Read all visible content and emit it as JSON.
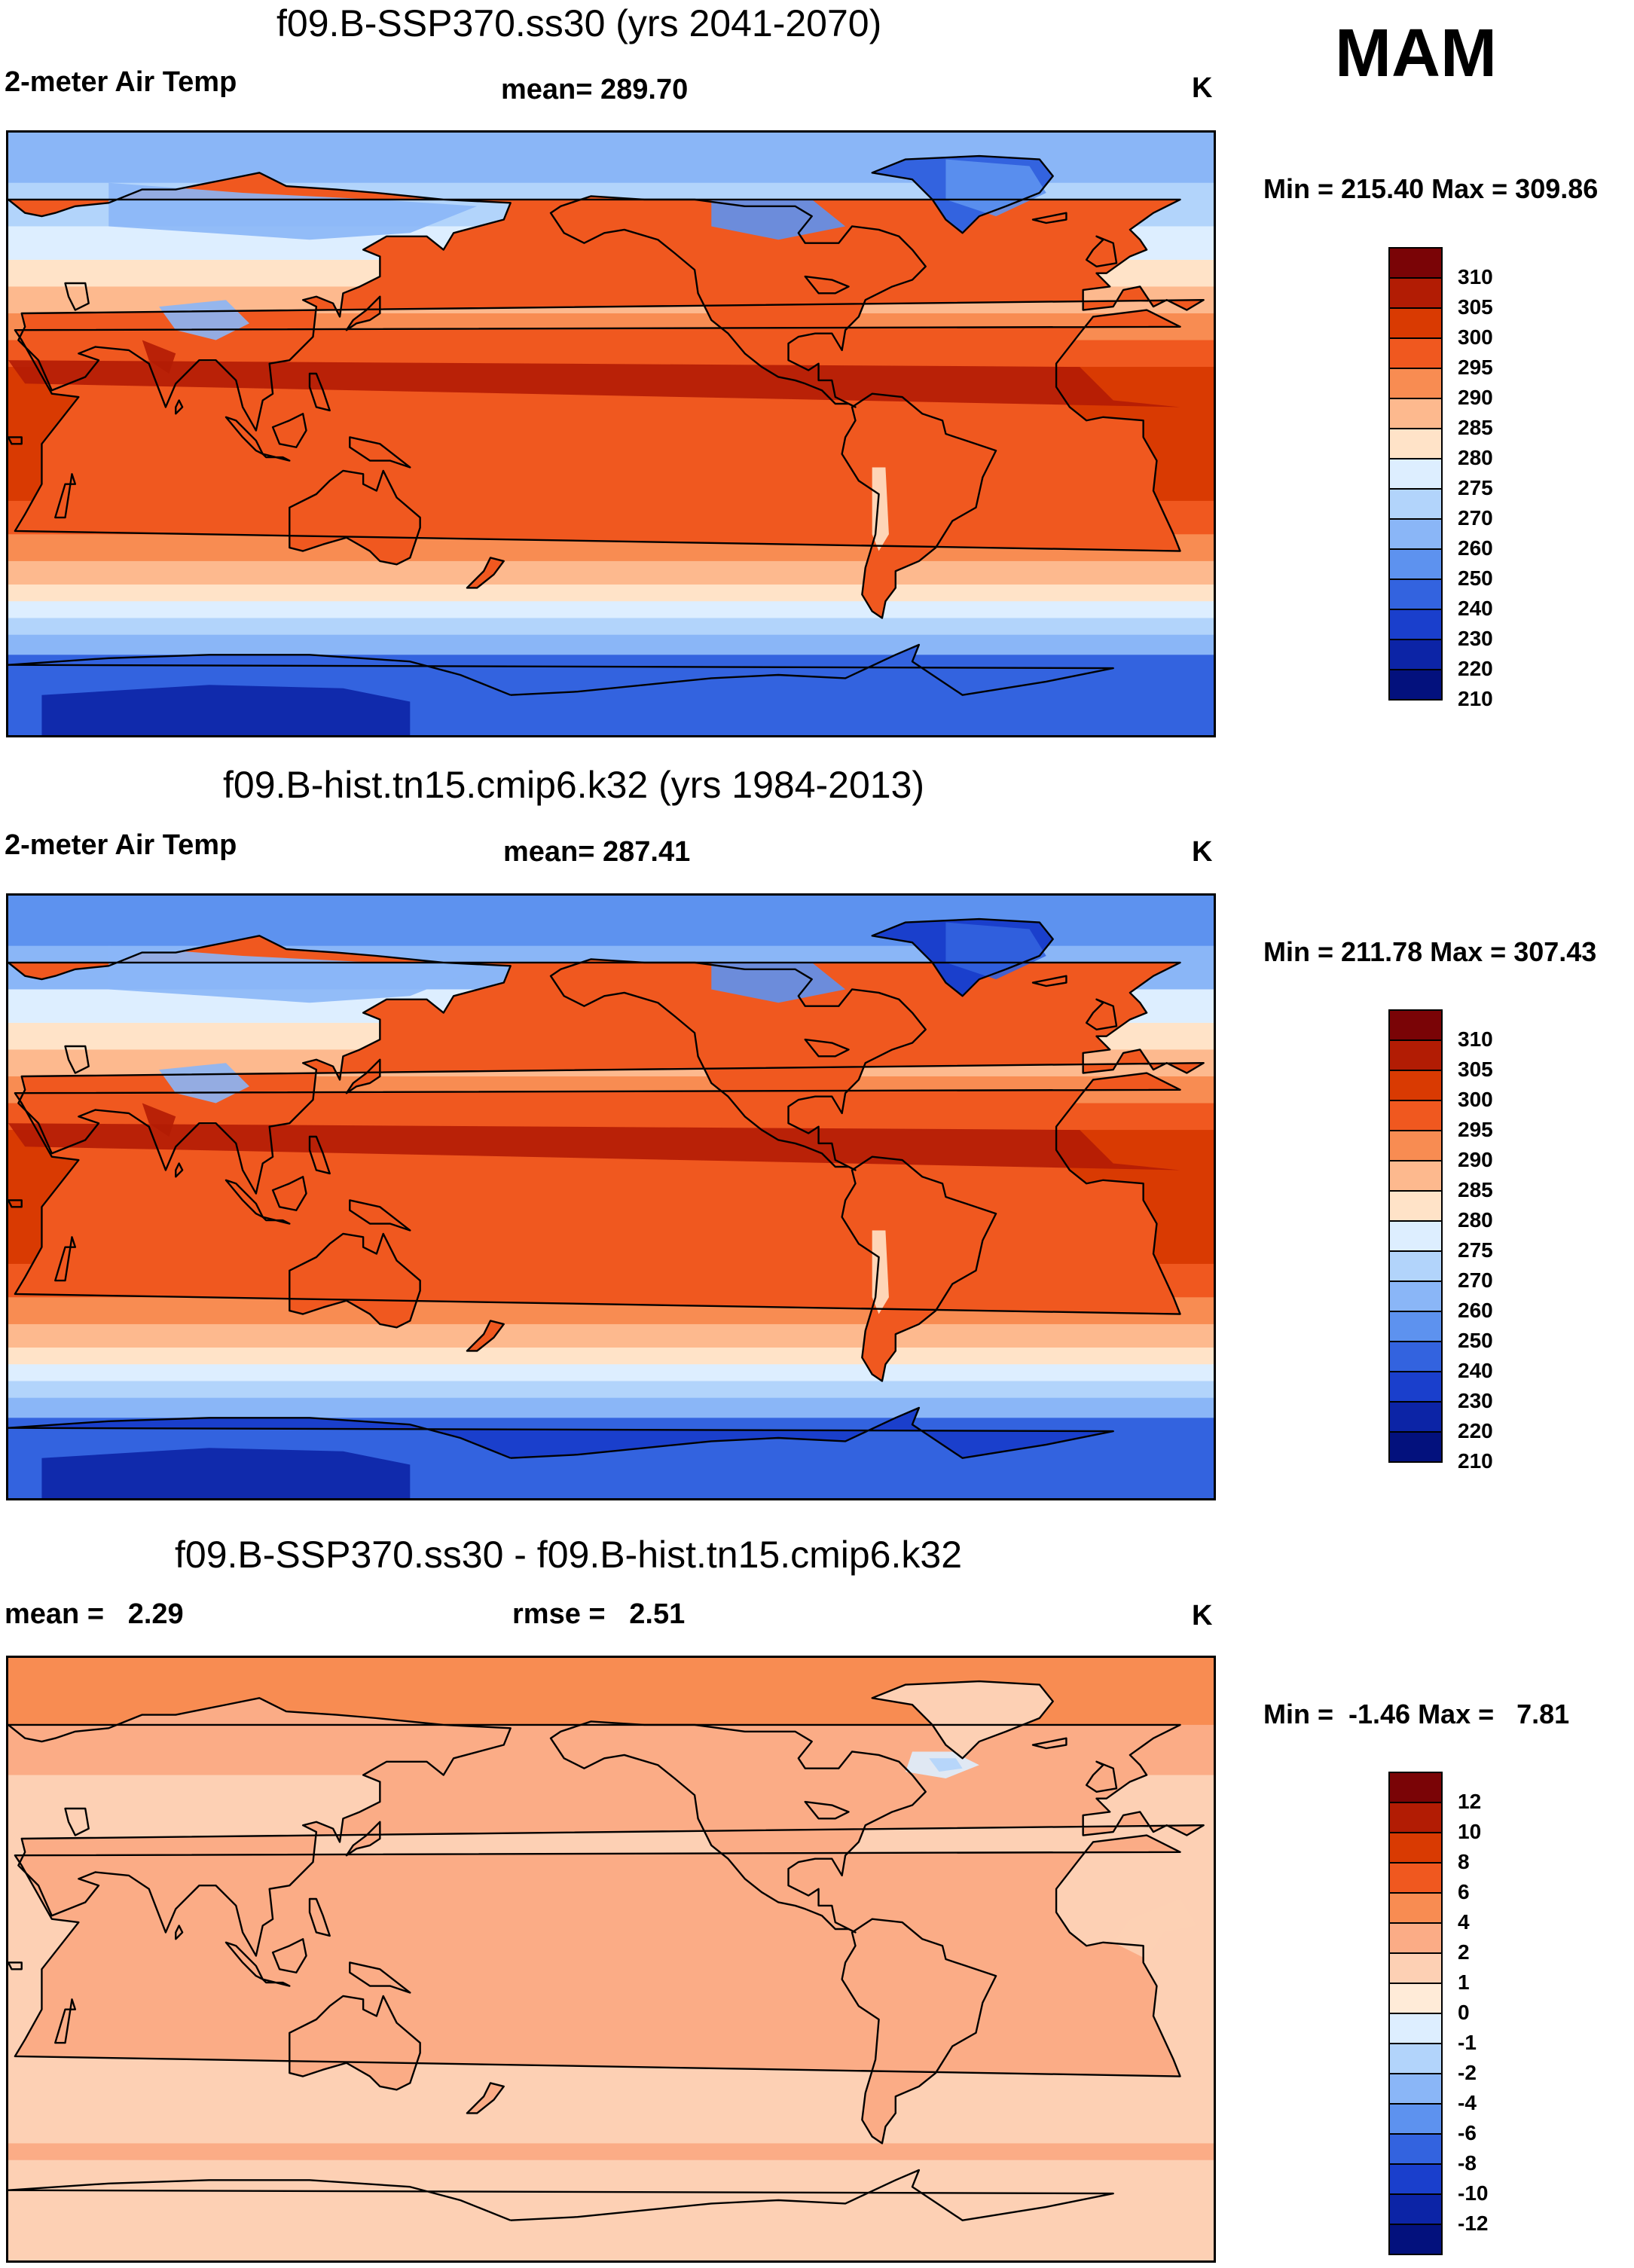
{
  "season": "MAM",
  "panels": [
    {
      "id": "ssp",
      "title": "f09.B-SSP370.ss30 (yrs 2041-2070)",
      "left_text": "2-meter Air Temp",
      "center_text": "mean= 289.70",
      "right_text": "K",
      "minmax": "Min = 215.40 Max = 309.86",
      "colorbar": {
        "colors": [
          "#7a0406",
          "#b21c04",
          "#d93a02",
          "#f0581f",
          "#f88c52",
          "#fdb98e",
          "#ffe3c8",
          "#ddeeff",
          "#b2d4fb",
          "#8ab6f7",
          "#5d92ef",
          "#3363df",
          "#1a3fcc",
          "#0c24a6",
          "#03117d"
        ],
        "labels": [
          "310",
          "305",
          "300",
          "295",
          "290",
          "285",
          "280",
          "275",
          "270",
          "260",
          "250",
          "240",
          "230",
          "220",
          "210"
        ]
      },
      "map_type": "absolute"
    },
    {
      "id": "hist",
      "title": "f09.B-hist.tn15.cmip6.k32 (yrs 1984-2013)",
      "left_text": "2-meter Air Temp",
      "center_text": "mean= 287.41",
      "right_text": "K",
      "minmax": "Min = 211.78 Max = 307.43",
      "colorbar": {
        "colors": [
          "#7a0406",
          "#b21c04",
          "#d93a02",
          "#f0581f",
          "#f88c52",
          "#fdb98e",
          "#ffe3c8",
          "#ddeeff",
          "#b2d4fb",
          "#8ab6f7",
          "#5d92ef",
          "#3363df",
          "#1a3fcc",
          "#0c24a6",
          "#03117d"
        ],
        "labels": [
          "310",
          "305",
          "300",
          "295",
          "290",
          "285",
          "280",
          "275",
          "270",
          "260",
          "250",
          "240",
          "230",
          "220",
          "210"
        ]
      },
      "map_type": "absolute_cool"
    },
    {
      "id": "diff",
      "title": "f09.B-SSP370.ss30 - f09.B-hist.tn15.cmip6.k32",
      "left_text": "mean =   2.29",
      "center_text": "rmse =   2.51",
      "right_text": "K",
      "minmax": "Min =  -1.46 Max =   7.81",
      "colorbar": {
        "colors": [
          "#7a0406",
          "#b21c04",
          "#d93a02",
          "#f0581f",
          "#f88c52",
          "#fbac86",
          "#fdd0b4",
          "#ffebd8",
          "#ddeeff",
          "#b2d4fb",
          "#8ab6f7",
          "#5d92ef",
          "#3363df",
          "#1a3fcc",
          "#0c24a6",
          "#03117d"
        ],
        "labels": [
          "12",
          "10",
          "8",
          "6",
          "4",
          "2",
          "1",
          "0",
          "-1",
          "-2",
          "-4",
          "-6",
          "-8",
          "-10",
          "-12"
        ]
      },
      "map_type": "difference"
    }
  ]
}
